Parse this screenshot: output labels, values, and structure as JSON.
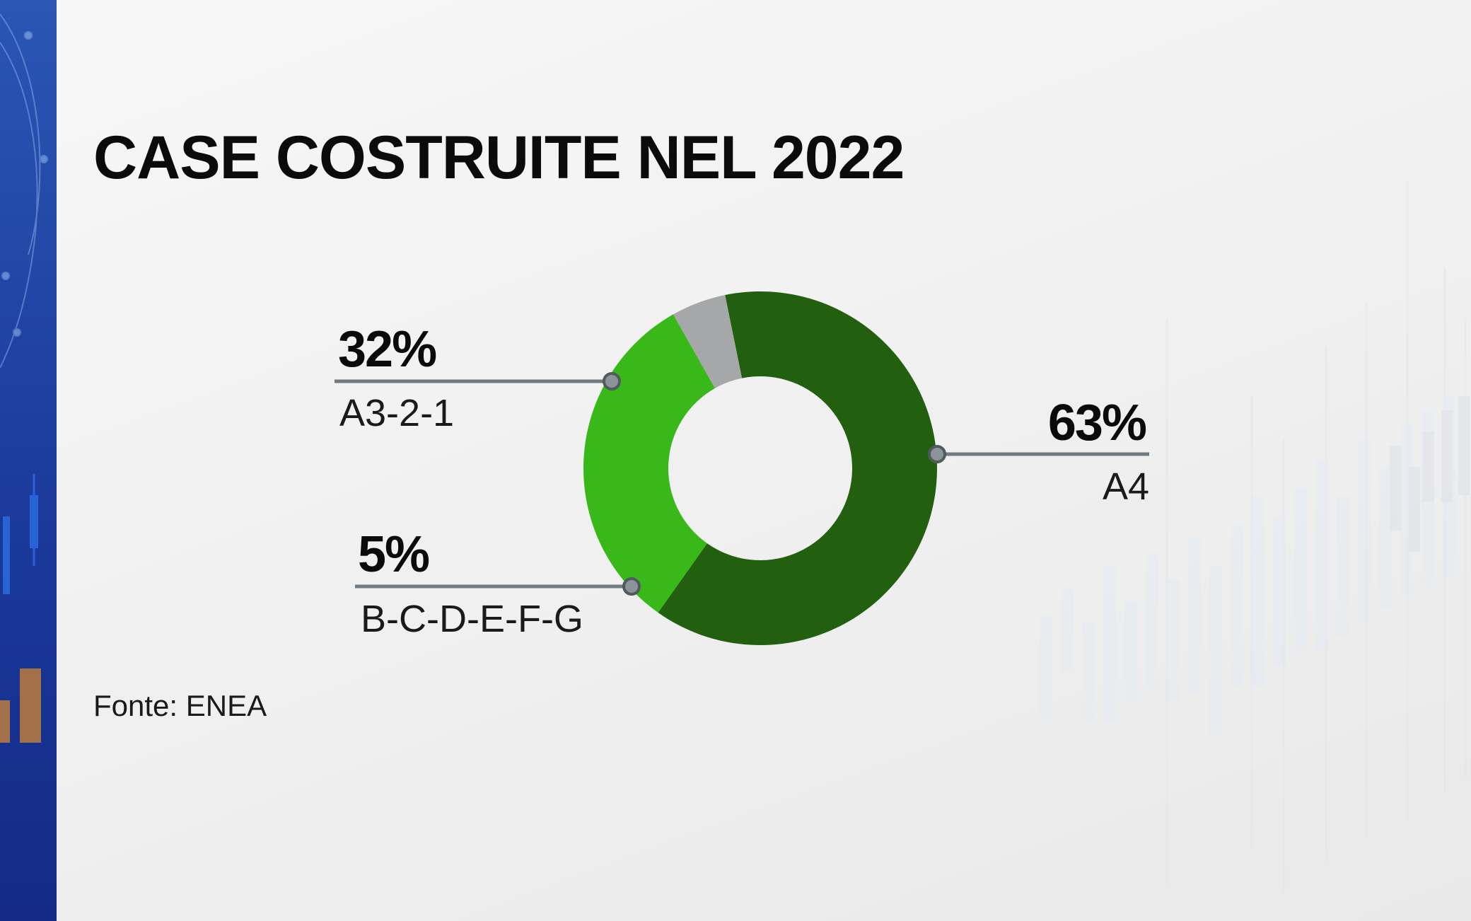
{
  "chart_data": {
    "type": "pie",
    "title": "CASE COSTRUITE NEL 2022",
    "series": [
      {
        "label": "A4",
        "value": 63,
        "value_label": "63%",
        "color": "#22600f"
      },
      {
        "label": "A3-2-1",
        "value": 32,
        "value_label": "32%",
        "color": "#39b81a"
      },
      {
        "label": "B-C-D-E-F-G",
        "value": 5,
        "value_label": "5%",
        "color": "#a5a7a8"
      }
    ],
    "source": "Fonte: ENEA"
  },
  "colors": {
    "sidebar": "#16318c",
    "leader_line": "#6f7b80"
  }
}
